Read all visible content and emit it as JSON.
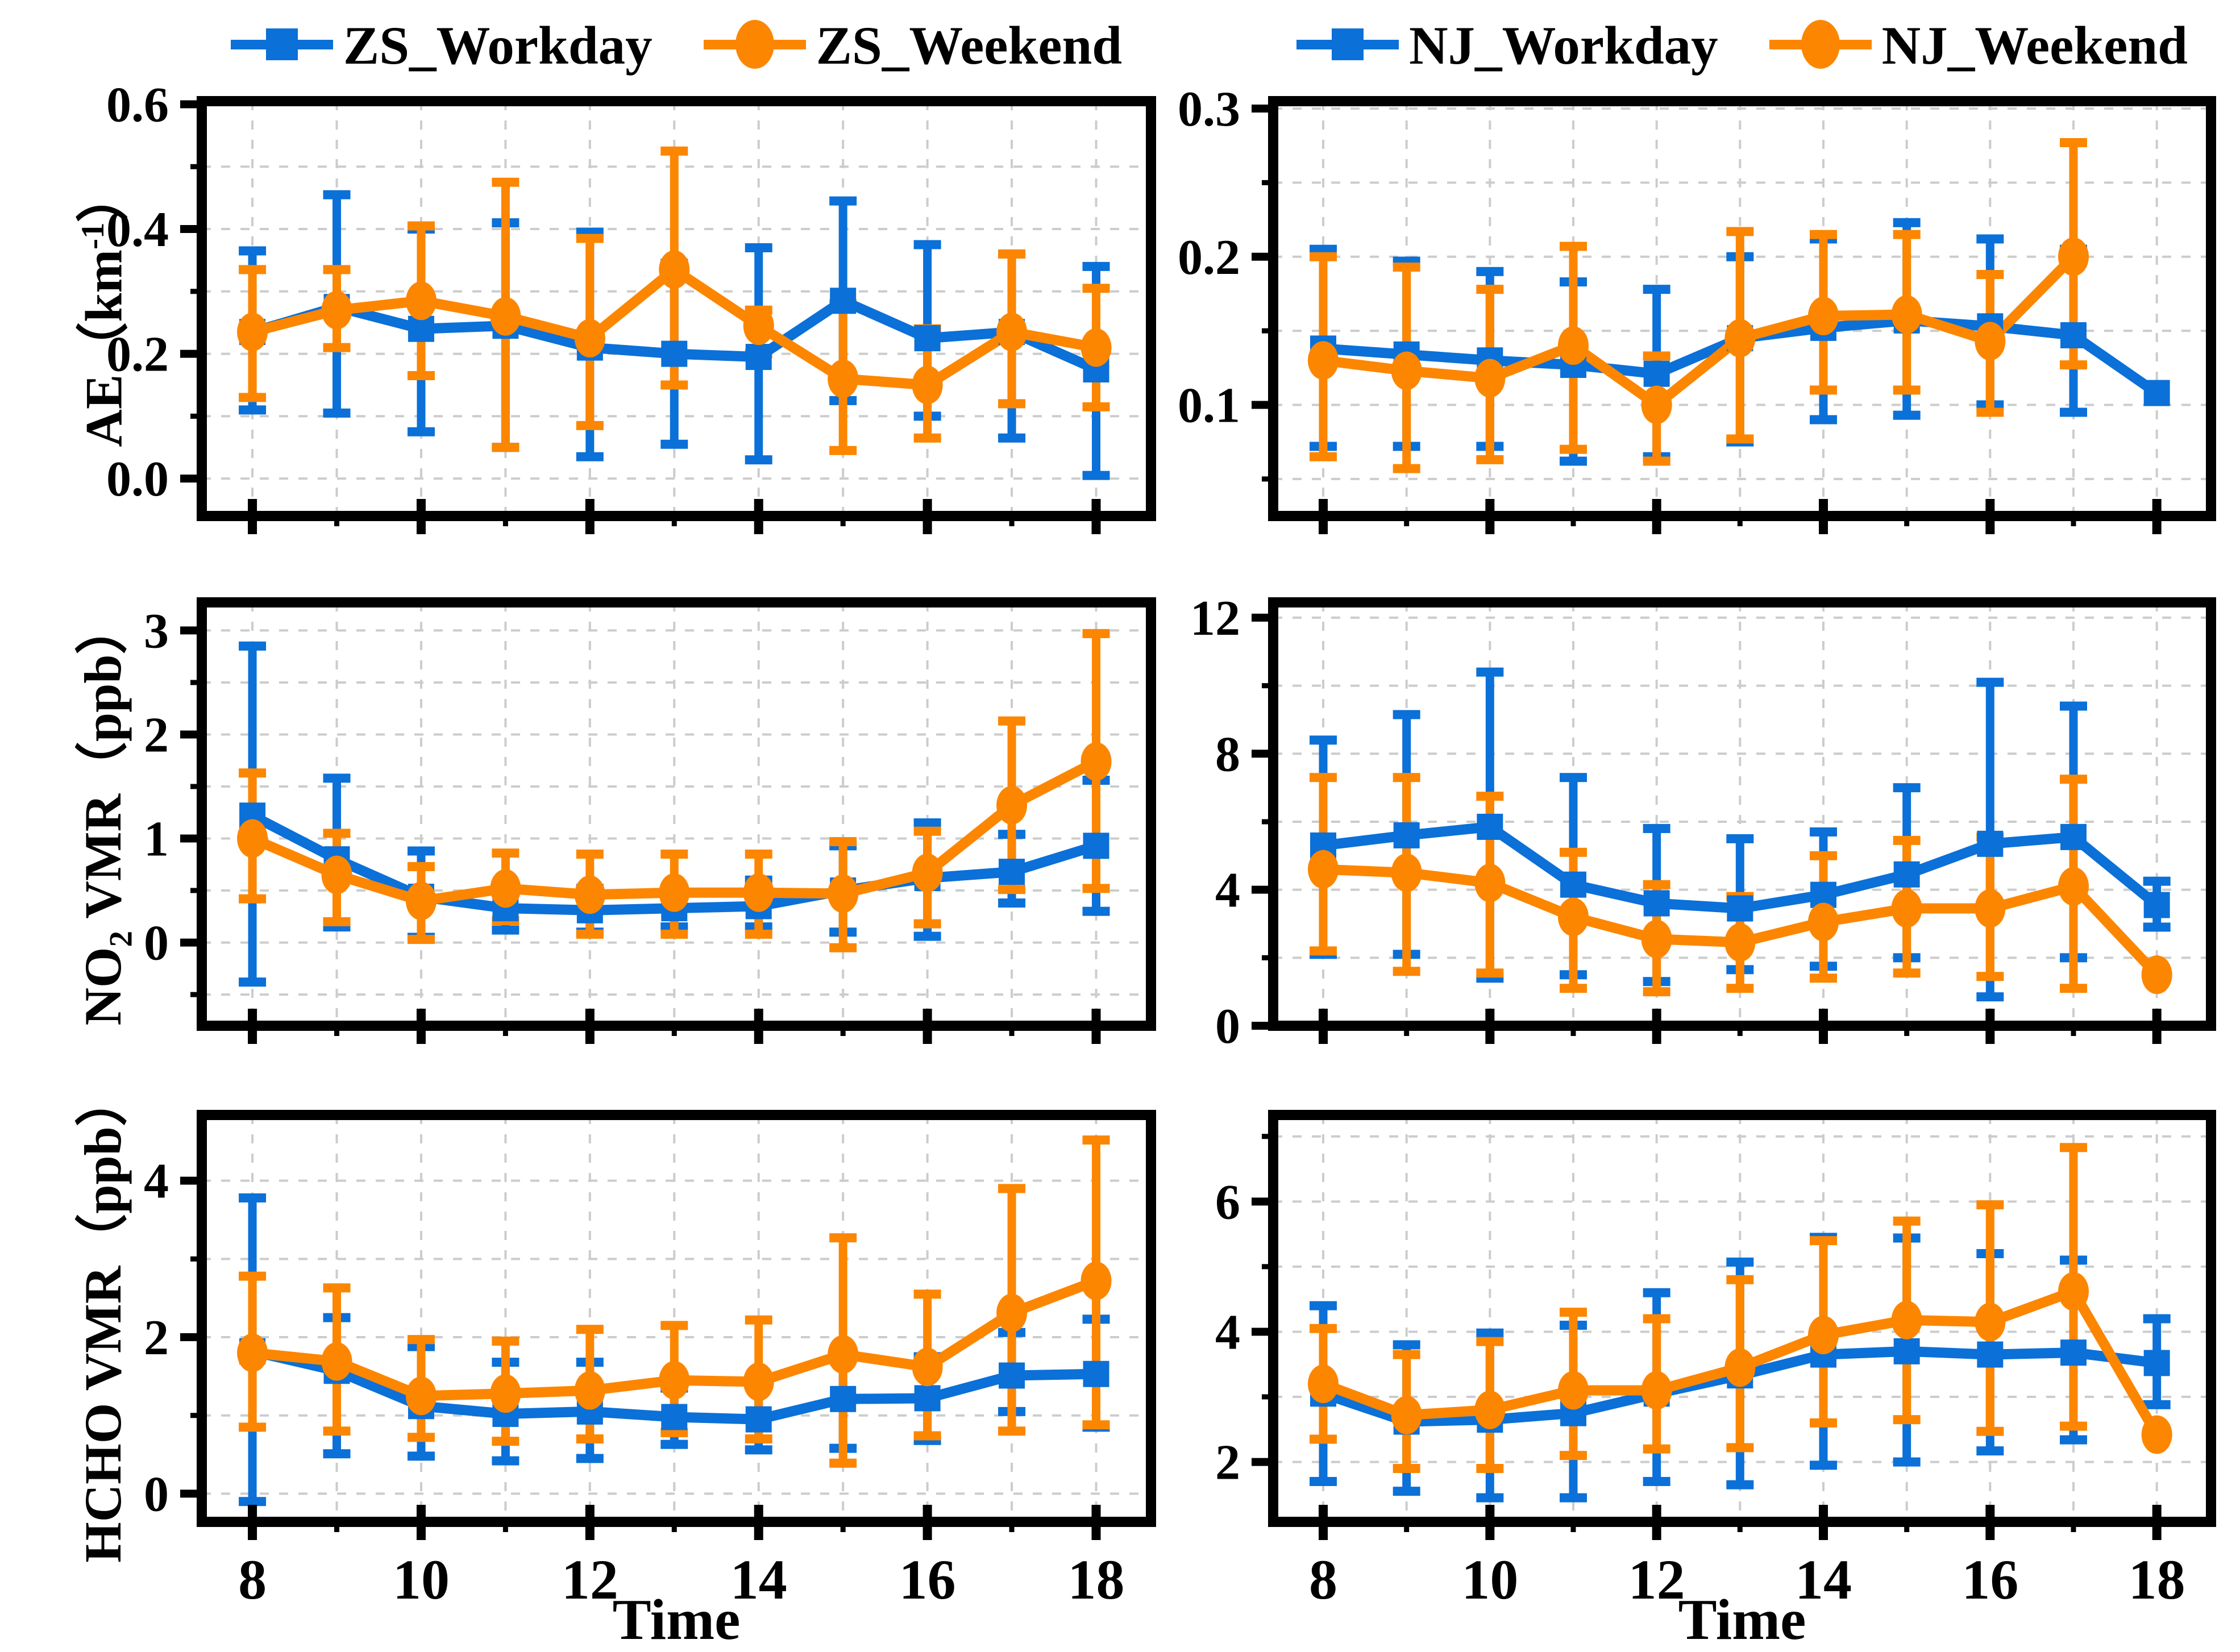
{
  "colors": {
    "workday": "#0b70d8",
    "weekend": "#fc8600",
    "grid": "#cccccc",
    "frame": "#000000"
  },
  "xlabel": "Time",
  "x_ticks": [
    8,
    10,
    12,
    14,
    16,
    18
  ],
  "legends": {
    "left": [
      {
        "label": "ZS_Workday",
        "series": "workday"
      },
      {
        "label": "ZS_Weekend",
        "series": "weekend"
      }
    ],
    "right": [
      {
        "label": "NJ_Workday",
        "series": "workday"
      },
      {
        "label": "NJ_Weekend",
        "series": "weekend"
      }
    ]
  },
  "chart_data": [
    {
      "id": "ae_zs",
      "type": "line",
      "ylabel": {
        "pre": "AE（km",
        "sup": "-1",
        "post": "）"
      },
      "ylim": [
        -0.06,
        0.605
      ],
      "ygrid": 0.1,
      "yticks": [
        {
          "v": 0.0,
          "label": "0.0"
        },
        {
          "v": 0.2,
          "label": "0.2"
        },
        {
          "v": 0.4,
          "label": "0.4"
        },
        {
          "v": 0.6,
          "label": "0.6"
        }
      ],
      "x": [
        8,
        9,
        10,
        11,
        12,
        13,
        14,
        15,
        16,
        17,
        18
      ],
      "show_x_tick_labels": false,
      "series": [
        {
          "name": "ZS_Workday",
          "key": "workday",
          "marker": "square",
          "values": [
            0.235,
            0.275,
            0.24,
            0.245,
            0.21,
            0.2,
            0.195,
            0.285,
            0.225,
            0.235,
            0.175
          ],
          "err_lo": [
            0.11,
            0.105,
            0.075,
            0.05,
            0.035,
            0.055,
            0.03,
            0.125,
            0.1,
            0.065,
            0.005
          ],
          "err_hi": [
            0.365,
            0.455,
            0.4,
            0.41,
            0.395,
            0.345,
            0.37,
            0.445,
            0.375,
            0.36,
            0.34
          ]
        },
        {
          "name": "ZS_Weekend",
          "key": "weekend",
          "marker": "circle",
          "values": [
            0.235,
            0.27,
            0.285,
            0.26,
            0.225,
            0.335,
            0.245,
            0.16,
            0.15,
            0.235,
            0.21
          ],
          "err_lo": [
            0.13,
            0.21,
            0.165,
            0.05,
            0.085,
            0.15,
            0.2,
            0.045,
            0.065,
            0.12,
            0.115
          ],
          "err_hi": [
            0.335,
            0.335,
            0.405,
            0.475,
            0.385,
            0.525,
            0.27,
            0.28,
            0.24,
            0.36,
            0.305
          ]
        }
      ]
    },
    {
      "id": "ae_nj",
      "type": "line",
      "ylabel": null,
      "ylim": [
        0.025,
        0.305
      ],
      "ygrid": 0.05,
      "yticks": [
        {
          "v": 0.1,
          "label": "0.1"
        },
        {
          "v": 0.2,
          "label": "0.2"
        },
        {
          "v": 0.3,
          "label": "0.3"
        }
      ],
      "x": [
        8,
        9,
        10,
        11,
        12,
        13,
        14,
        15,
        16,
        17,
        18
      ],
      "show_x_tick_labels": false,
      "series": [
        {
          "name": "NJ_Workday",
          "key": "workday",
          "marker": "square",
          "values": [
            0.138,
            0.134,
            0.13,
            0.127,
            0.121,
            0.145,
            0.152,
            0.157,
            0.153,
            0.147,
            0.108
          ],
          "err_lo": [
            0.072,
            0.072,
            0.072,
            0.062,
            0.065,
            0.075,
            0.09,
            0.093,
            0.1,
            0.095,
            null
          ],
          "err_hi": [
            0.205,
            0.197,
            0.19,
            0.183,
            0.178,
            0.2,
            0.212,
            0.223,
            0.212,
            0.205,
            null
          ]
        },
        {
          "name": "NJ_Weekend",
          "key": "weekend",
          "marker": "circle",
          "values": [
            0.13,
            0.123,
            0.118,
            0.14,
            0.1,
            0.145,
            0.16,
            0.161,
            0.143,
            0.2,
            null
          ],
          "err_lo": [
            0.065,
            0.057,
            0.063,
            0.07,
            0.062,
            0.077,
            0.11,
            0.11,
            0.095,
            0.127,
            null
          ],
          "err_hi": [
            0.2,
            0.193,
            0.178,
            0.207,
            0.133,
            0.217,
            0.215,
            0.215,
            0.188,
            0.277,
            null
          ]
        }
      ]
    },
    {
      "id": "no2_zs",
      "type": "line",
      "ylabel": {
        "pre": "NO",
        "sub": "2",
        "post": " VMR（ppb）"
      },
      "ylim": [
        -0.8,
        3.27
      ],
      "ygrid": 0.5,
      "yticks": [
        {
          "v": 0,
          "label": "0"
        },
        {
          "v": 1,
          "label": "1"
        },
        {
          "v": 2,
          "label": "2"
        },
        {
          "v": 3,
          "label": "3"
        }
      ],
      "x": [
        8,
        9,
        10,
        11,
        12,
        13,
        14,
        15,
        16,
        17,
        18
      ],
      "show_x_tick_labels": false,
      "series": [
        {
          "name": "ZS_Workday",
          "key": "workday",
          "marker": "square",
          "values": [
            1.22,
            0.8,
            0.44,
            0.33,
            0.31,
            0.33,
            0.35,
            0.5,
            0.62,
            0.68,
            0.93
          ],
          "err_lo": [
            -0.38,
            0.15,
            0.05,
            0.12,
            0.1,
            0.15,
            0.15,
            0.1,
            0.06,
            0.38,
            0.3
          ],
          "err_hi": [
            2.85,
            1.58,
            0.88,
            0.55,
            0.52,
            0.52,
            0.6,
            0.93,
            1.15,
            1.04,
            1.56
          ]
        },
        {
          "name": "ZS_Weekend",
          "key": "weekend",
          "marker": "circle",
          "values": [
            1.0,
            0.65,
            0.4,
            0.52,
            0.46,
            0.48,
            0.48,
            0.47,
            0.67,
            1.32,
            1.74
          ],
          "err_lo": [
            0.42,
            0.2,
            0.03,
            0.21,
            0.08,
            0.08,
            0.08,
            -0.05,
            0.18,
            0.51,
            0.52
          ],
          "err_hi": [
            1.63,
            1.05,
            0.73,
            0.86,
            0.85,
            0.85,
            0.85,
            0.97,
            1.07,
            2.13,
            2.97
          ]
        }
      ]
    },
    {
      "id": "no2_nj",
      "type": "line",
      "ylabel": null,
      "ylim": [
        0,
        12.45
      ],
      "ygrid": 2,
      "yticks": [
        {
          "v": 0,
          "label": "0"
        },
        {
          "v": 4,
          "label": "4"
        },
        {
          "v": 8,
          "label": "8"
        },
        {
          "v": 12,
          "label": "12"
        }
      ],
      "x": [
        8,
        9,
        10,
        11,
        12,
        13,
        14,
        15,
        16,
        17,
        18
      ],
      "show_x_tick_labels": false,
      "series": [
        {
          "name": "NJ_Workday",
          "key": "workday",
          "marker": "square",
          "values": [
            5.3,
            5.6,
            5.85,
            4.15,
            3.6,
            3.45,
            3.85,
            4.45,
            5.35,
            5.55,
            3.55
          ],
          "err_lo": [
            2.1,
            2.1,
            1.4,
            1.5,
            1.3,
            1.65,
            1.75,
            2.0,
            0.85,
            2.0,
            2.9
          ],
          "err_hi": [
            8.4,
            9.15,
            10.4,
            7.3,
            5.8,
            5.5,
            5.7,
            7.0,
            10.1,
            9.4,
            4.25
          ]
        },
        {
          "name": "NJ_Weekend",
          "key": "weekend",
          "marker": "circle",
          "values": [
            4.6,
            4.5,
            4.2,
            3.2,
            2.55,
            2.45,
            3.05,
            3.45,
            3.45,
            4.1,
            1.5
          ],
          "err_lo": [
            2.2,
            1.6,
            1.55,
            1.1,
            1.0,
            1.1,
            1.4,
            1.55,
            1.45,
            1.1,
            null
          ],
          "err_hi": [
            7.3,
            7.3,
            6.75,
            5.1,
            4.15,
            3.8,
            5.0,
            5.45,
            5.55,
            7.25,
            null
          ]
        }
      ]
    },
    {
      "id": "hcho_zs",
      "type": "line",
      "ylabel": {
        "pre": "HCHO VMR（ppb）"
      },
      "ylim": [
        -0.36,
        4.84
      ],
      "ygrid": 1,
      "yticks": [
        {
          "v": 0,
          "label": "0"
        },
        {
          "v": 2,
          "label": "2"
        },
        {
          "v": 4,
          "label": "4"
        }
      ],
      "x": [
        8,
        9,
        10,
        11,
        12,
        13,
        14,
        15,
        16,
        17,
        18
      ],
      "show_x_tick_labels": true,
      "series": [
        {
          "name": "ZS_Workday",
          "key": "workday",
          "marker": "square",
          "values": [
            1.82,
            1.57,
            1.12,
            1.02,
            1.05,
            0.98,
            0.95,
            1.21,
            1.22,
            1.51,
            1.53
          ],
          "err_lo": [
            -0.1,
            0.51,
            0.48,
            0.42,
            0.45,
            0.63,
            0.56,
            0.58,
            0.68,
            1.05,
            0.85
          ],
          "err_hi": [
            3.78,
            2.25,
            1.88,
            1.68,
            1.68,
            1.35,
            1.42,
            1.83,
            1.75,
            2.06,
            2.23
          ]
        },
        {
          "name": "ZS_Weekend",
          "key": "weekend",
          "marker": "circle",
          "values": [
            1.8,
            1.69,
            1.25,
            1.28,
            1.32,
            1.45,
            1.43,
            1.78,
            1.62,
            2.31,
            2.72
          ],
          "err_lo": [
            0.85,
            0.8,
            0.72,
            0.67,
            0.7,
            0.78,
            0.7,
            0.39,
            0.74,
            0.8,
            0.88
          ],
          "err_hi": [
            2.78,
            2.63,
            1.97,
            1.95,
            2.1,
            2.15,
            2.22,
            3.27,
            2.55,
            3.9,
            4.52
          ]
        }
      ]
    },
    {
      "id": "hcho_nj",
      "type": "line",
      "ylabel": null,
      "ylim": [
        1.08,
        7.33
      ],
      "ygrid": 1,
      "yticks": [
        {
          "v": 2,
          "label": "2"
        },
        {
          "v": 4,
          "label": "4"
        },
        {
          "v": 6,
          "label": "6"
        }
      ],
      "x": [
        8,
        9,
        10,
        11,
        12,
        13,
        14,
        15,
        16,
        17,
        18
      ],
      "show_x_tick_labels": true,
      "series": [
        {
          "name": "NJ_Workday",
          "key": "workday",
          "marker": "square",
          "values": [
            3.05,
            2.62,
            2.65,
            2.75,
            3.05,
            3.33,
            3.65,
            3.7,
            3.65,
            3.68,
            3.52
          ],
          "err_lo": [
            1.7,
            1.55,
            1.45,
            1.45,
            1.7,
            1.65,
            1.95,
            2.0,
            2.17,
            2.34,
            2.88
          ],
          "err_hi": [
            4.4,
            3.8,
            3.98,
            4.1,
            4.6,
            5.07,
            5.45,
            5.44,
            5.2,
            5.1,
            4.2
          ]
        },
        {
          "name": "NJ_Weekend",
          "key": "weekend",
          "marker": "circle",
          "values": [
            3.2,
            2.72,
            2.8,
            3.1,
            3.1,
            3.45,
            3.95,
            4.18,
            4.15,
            4.62,
            2.42
          ],
          "err_lo": [
            2.35,
            1.9,
            1.9,
            2.1,
            2.2,
            2.22,
            2.6,
            2.65,
            2.47,
            2.55,
            null
          ],
          "err_hi": [
            4.05,
            3.65,
            3.85,
            4.3,
            4.2,
            4.8,
            5.4,
            5.7,
            5.95,
            6.83,
            null
          ]
        }
      ]
    }
  ]
}
